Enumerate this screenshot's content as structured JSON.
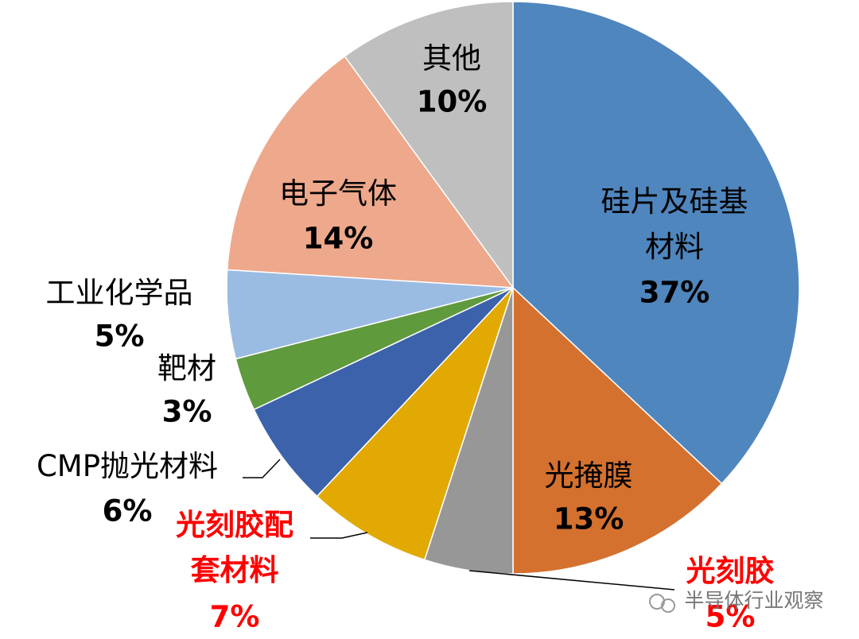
{
  "chart_data": {
    "type": "pie",
    "categories": [
      "硅片及硅基\n材料",
      "光掩膜",
      "光刻胶",
      "光刻胶配\n套材料",
      "CMP抛光材料",
      "靶材",
      "工业化学品",
      "电子气体",
      "其他"
    ],
    "values": [
      37,
      13,
      5,
      7,
      6,
      3,
      5,
      14,
      10
    ],
    "value_labels": [
      "37%",
      "13%",
      "5%",
      "7%",
      "6%",
      "3%",
      "5%",
      "14%",
      "10%"
    ],
    "colors": [
      "#4f86be",
      "#d4712e",
      "#979797",
      "#e1a902",
      "#3c62ab",
      "#5f9a3d",
      "#9bbce2",
      "#eea88b",
      "#bfbfbf"
    ],
    "label_colors": [
      "#000000",
      "#000000",
      "#ff0000",
      "#ff0000",
      "#000000",
      "#000000",
      "#000000",
      "#000000",
      "#000000"
    ],
    "watermark": "半导体行业观察"
  }
}
